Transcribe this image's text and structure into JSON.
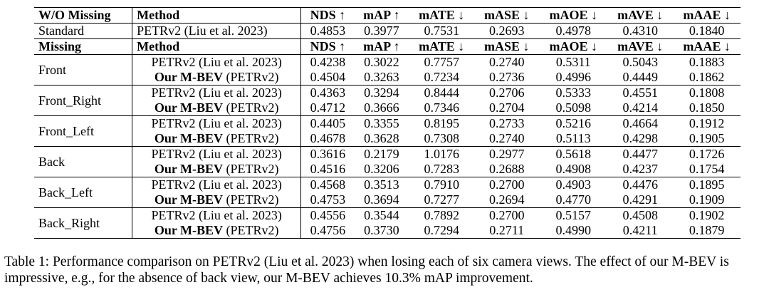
{
  "table": {
    "header1": {
      "col0": "W/O Missing",
      "col1": "Method",
      "metrics": [
        "NDS ↑",
        "mAP ↑",
        "mATE ↓",
        "mASE ↓",
        "mAOE ↓",
        "mAVE ↓",
        "mAAE ↓"
      ]
    },
    "standard": {
      "scenario": "Standard",
      "method": "PETRv2 (Liu et al. 2023)",
      "values": [
        "0.4853",
        "0.3977",
        "0.7531",
        "0.2693",
        "0.4978",
        "0.4310",
        "0.1840"
      ]
    },
    "header2": {
      "col0": "Missing",
      "col1": "Method",
      "metrics": [
        "NDS ↑",
        "mAP ↑",
        "mATE ↓",
        "mASE ↓",
        "mAOE ↓",
        "mAVE ↓",
        "mAAE ↓"
      ]
    },
    "ours_prefix": "Our M-BEV",
    "ours_suffix": " (PETRv2)",
    "groups": [
      {
        "scenario": "Front",
        "baseline": {
          "method": "PETRv2 (Liu et al. 2023)",
          "values": [
            "0.4238",
            "0.3022",
            "0.7757",
            "0.2740",
            "0.5311",
            "0.5043",
            "0.1883"
          ]
        },
        "ours": {
          "values": [
            "0.4504",
            "0.3263",
            "0.7234",
            "0.2736",
            "0.4996",
            "0.4449",
            "0.1862"
          ]
        }
      },
      {
        "scenario": "Front_Right",
        "baseline": {
          "method": "PETRv2 (Liu et al. 2023)",
          "values": [
            "0.4363",
            "0.3294",
            "0.8444",
            "0.2706",
            "0.5333",
            "0.4551",
            "0.1808"
          ]
        },
        "ours": {
          "values": [
            "0.4712",
            "0.3666",
            "0.7346",
            "0.2704",
            "0.5098",
            "0.4214",
            "0.1850"
          ]
        }
      },
      {
        "scenario": "Front_Left",
        "baseline": {
          "method": "PETRv2 (Liu et al. 2023)",
          "values": [
            "0.4405",
            "0.3355",
            "0.8195",
            "0.2733",
            "0.5216",
            "0.4664",
            "0.1912"
          ]
        },
        "ours": {
          "values": [
            "0.4678",
            "0.3628",
            "0.7308",
            "0.2740",
            "0.5113",
            "0.4298",
            "0.1905"
          ]
        }
      },
      {
        "scenario": "Back",
        "baseline": {
          "method": "PETRv2 (Liu et al. 2023)",
          "values": [
            "0.3616",
            "0.2179",
            "1.0176",
            "0.2977",
            "0.5618",
            "0.4477",
            "0.1726"
          ]
        },
        "ours": {
          "values": [
            "0.4516",
            "0.3206",
            "0.7283",
            "0.2688",
            "0.4908",
            "0.4237",
            "0.1754"
          ]
        }
      },
      {
        "scenario": "Back_Left",
        "baseline": {
          "method": "PETRv2 (Liu et al. 2023)",
          "values": [
            "0.4568",
            "0.3513",
            "0.7910",
            "0.2700",
            "0.4903",
            "0.4476",
            "0.1895"
          ]
        },
        "ours": {
          "values": [
            "0.4753",
            "0.3694",
            "0.7277",
            "0.2694",
            "0.4770",
            "0.4291",
            "0.1909"
          ]
        }
      },
      {
        "scenario": "Back_Right",
        "baseline": {
          "method": "PETRv2 (Liu et al. 2023)",
          "values": [
            "0.4556",
            "0.3544",
            "0.7892",
            "0.2700",
            "0.5157",
            "0.4508",
            "0.1902"
          ]
        },
        "ours": {
          "values": [
            "0.4756",
            "0.3730",
            "0.7294",
            "0.2711",
            "0.4990",
            "0.4211",
            "0.1879"
          ]
        }
      }
    ]
  },
  "caption": "Table 1: Performance comparison on PETRv2 (Liu et al. 2023) when losing each of six camera views. The effect of our M-BEV is impressive, e.g., for the absence of back view, our M-BEV achieves 10.3% mAP improvement."
}
